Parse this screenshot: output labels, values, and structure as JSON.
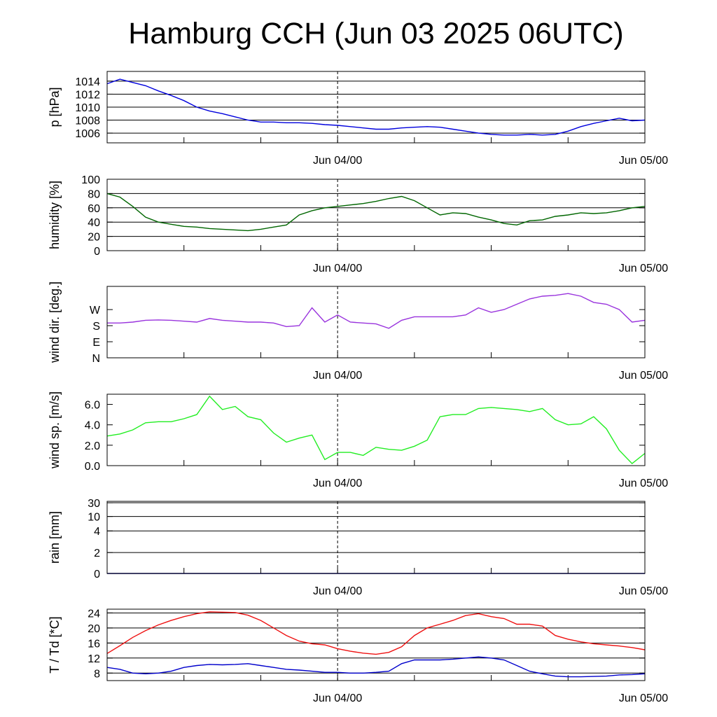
{
  "title": "Hamburg CCH (Jun 03 2025 06UTC)",
  "x_tick_labels": [
    "Jun 04/00",
    "Jun 05/00"
  ],
  "colors": {
    "pressure": "#0000dd",
    "humidity": "#006600",
    "wind_dir": "#9933dd",
    "wind_speed": "#22ee22",
    "rain": "#000099",
    "temperature": "#ee1111",
    "dewpoint": "#0000cc"
  },
  "chart_data": [
    {
      "type": "line",
      "id": "pressure",
      "ylabel": "p [hPa]",
      "ylim": [
        1004.5,
        1015.5
      ],
      "grid": true,
      "yticks": [
        1006,
        1008,
        1010,
        1012,
        1014
      ],
      "ytick_labels": [
        "1006",
        "1008",
        "1010",
        "1012",
        "1014"
      ],
      "x_hours": [
        0,
        1,
        2,
        3,
        4,
        5,
        6,
        7,
        8,
        9,
        10,
        11,
        12,
        13,
        14,
        15,
        16,
        17,
        18,
        19,
        20,
        21,
        22,
        23,
        24,
        25,
        26,
        27,
        28,
        29,
        30,
        31,
        32,
        33,
        34,
        35,
        36,
        37,
        38,
        39,
        40,
        41,
        42
      ],
      "series": [
        {
          "color_key": "pressure",
          "values": [
            1013.6,
            1014.3,
            1013.8,
            1013.3,
            1012.5,
            1011.8,
            1011.0,
            1010.0,
            1009.4,
            1009.0,
            1008.5,
            1008.0,
            1007.7,
            1007.7,
            1007.6,
            1007.6,
            1007.5,
            1007.3,
            1007.2,
            1007.0,
            1006.8,
            1006.6,
            1006.6,
            1006.8,
            1006.9,
            1007.0,
            1006.9,
            1006.6,
            1006.3,
            1006.0,
            1005.8,
            1005.7,
            1005.7,
            1005.8,
            1005.7,
            1005.8,
            1006.3,
            1007.0,
            1007.5,
            1007.9,
            1008.3,
            1007.9,
            1008.0
          ]
        }
      ]
    },
    {
      "type": "line",
      "id": "humidity",
      "ylabel": "humidity [%]",
      "ylim": [
        0,
        100
      ],
      "grid": true,
      "yticks": [
        0,
        20,
        40,
        60,
        80,
        100
      ],
      "ytick_labels": [
        "0",
        "20",
        "40",
        "60",
        "80",
        "100"
      ],
      "x_hours": [
        0,
        1,
        2,
        3,
        4,
        5,
        6,
        7,
        8,
        9,
        10,
        11,
        12,
        13,
        14,
        15,
        16,
        17,
        18,
        19,
        20,
        21,
        22,
        23,
        24,
        25,
        26,
        27,
        28,
        29,
        30,
        31,
        32,
        33,
        34,
        35,
        36,
        37,
        38,
        39,
        40,
        41,
        42
      ],
      "series": [
        {
          "color_key": "humidity",
          "values": [
            80,
            75,
            62,
            47,
            40,
            37,
            34,
            33,
            31,
            30,
            29,
            28,
            30,
            33,
            36,
            50,
            56,
            60,
            62,
            64,
            66,
            69,
            73,
            76,
            70,
            60,
            50,
            53,
            52,
            47,
            43,
            38,
            36,
            42,
            43,
            48,
            50,
            53,
            52,
            53,
            56,
            60,
            62
          ]
        }
      ]
    },
    {
      "type": "line",
      "id": "wind_dir",
      "ylabel": "wind dir. [deg.]",
      "ylim": [
        0,
        400
      ],
      "grid": false,
      "yticks": [
        0,
        90,
        180,
        270
      ],
      "ytick_labels": [
        "N",
        "E",
        "S",
        "W"
      ],
      "x_hours": [
        0,
        1,
        2,
        3,
        4,
        5,
        6,
        7,
        8,
        9,
        10,
        11,
        12,
        13,
        14,
        15,
        16,
        17,
        18,
        19,
        20,
        21,
        22,
        23,
        24,
        25,
        26,
        27,
        28,
        29,
        30,
        31,
        32,
        33,
        34,
        35,
        36,
        37,
        38,
        39,
        40,
        41,
        42
      ],
      "series": [
        {
          "color_key": "wind_dir",
          "values": [
            195,
            195,
            200,
            210,
            212,
            210,
            205,
            200,
            220,
            210,
            205,
            200,
            200,
            195,
            175,
            180,
            280,
            200,
            240,
            200,
            195,
            190,
            165,
            210,
            230,
            230,
            230,
            230,
            240,
            280,
            255,
            270,
            300,
            330,
            345,
            350,
            360,
            345,
            310,
            300,
            270,
            200,
            210
          ]
        }
      ]
    },
    {
      "type": "line",
      "id": "wind_speed",
      "ylabel": "wind sp. [m/s]",
      "ylim": [
        0,
        7.0
      ],
      "grid": false,
      "yticks": [
        0,
        2,
        4,
        6
      ],
      "ytick_labels": [
        "0.0",
        "2.0",
        "4.0",
        "6.0"
      ],
      "x_hours": [
        0,
        1,
        2,
        3,
        4,
        5,
        6,
        7,
        8,
        9,
        10,
        11,
        12,
        13,
        14,
        15,
        16,
        17,
        18,
        19,
        20,
        21,
        22,
        23,
        24,
        25,
        26,
        27,
        28,
        29,
        30,
        31,
        32,
        33,
        34,
        35,
        36,
        37,
        38,
        39,
        40,
        41,
        42
      ],
      "series": [
        {
          "color_key": "wind_speed",
          "values": [
            2.9,
            3.1,
            3.5,
            4.2,
            4.3,
            4.3,
            4.6,
            5.0,
            6.8,
            5.5,
            5.8,
            4.8,
            4.5,
            3.2,
            2.3,
            2.7,
            3.0,
            0.6,
            1.3,
            1.3,
            1.0,
            1.8,
            1.6,
            1.5,
            1.9,
            2.5,
            4.8,
            5.0,
            5.0,
            5.6,
            5.7,
            5.6,
            5.5,
            5.3,
            5.6,
            4.5,
            4.0,
            4.1,
            4.8,
            3.6,
            1.5,
            0.2,
            1.2
          ]
        }
      ]
    },
    {
      "type": "line",
      "id": "rain",
      "ylabel": "rain [mm]",
      "ylim": [
        0,
        30
      ],
      "grid": true,
      "yticks": [
        0,
        2,
        4,
        10,
        30
      ],
      "ytick_labels": [
        "0",
        "2",
        "4",
        "10",
        "30"
      ],
      "x_hours": [
        0,
        42
      ],
      "series": [
        {
          "color_key": "rain",
          "values": [
            0,
            0
          ]
        }
      ]
    },
    {
      "type": "line",
      "id": "temp",
      "ylabel": "T / Td [*C]",
      "ylim": [
        6,
        25
      ],
      "grid": true,
      "yticks": [
        8,
        12,
        16,
        20,
        24
      ],
      "ytick_labels": [
        "8",
        "12",
        "16",
        "20",
        "24"
      ],
      "x_hours": [
        0,
        1,
        2,
        3,
        4,
        5,
        6,
        7,
        8,
        9,
        10,
        11,
        12,
        13,
        14,
        15,
        16,
        17,
        18,
        19,
        20,
        21,
        22,
        23,
        24,
        25,
        26,
        27,
        28,
        29,
        30,
        31,
        32,
        33,
        34,
        35,
        36,
        37,
        38,
        39,
        40,
        41,
        42
      ],
      "series": [
        {
          "color_key": "temperature",
          "values": [
            13.2,
            15.3,
            17.5,
            19.3,
            20.8,
            22.0,
            23.0,
            23.8,
            24.3,
            24.2,
            24.1,
            23.4,
            22.0,
            20.0,
            18.0,
            16.5,
            15.8,
            15.5,
            14.5,
            13.8,
            13.3,
            13.0,
            13.5,
            15.0,
            18.0,
            20.0,
            21.0,
            22.0,
            23.3,
            23.8,
            23.0,
            22.5,
            21.0,
            21.0,
            20.5,
            18.0,
            17.0,
            16.3,
            15.8,
            15.5,
            15.2,
            14.8,
            14.2
          ]
        },
        {
          "color_key": "dewpoint",
          "values": [
            9.5,
            9.0,
            8.0,
            7.8,
            8.0,
            8.5,
            9.5,
            10.0,
            10.3,
            10.2,
            10.3,
            10.5,
            10.0,
            9.5,
            9.0,
            8.8,
            8.5,
            8.2,
            8.2,
            8.0,
            8.0,
            8.2,
            8.5,
            10.5,
            11.5,
            11.5,
            11.5,
            11.7,
            12.0,
            12.3,
            12.0,
            11.5,
            10.0,
            8.5,
            7.8,
            7.2,
            7.0,
            7.0,
            7.1,
            7.2,
            7.5,
            7.6,
            7.8
          ]
        }
      ]
    }
  ]
}
